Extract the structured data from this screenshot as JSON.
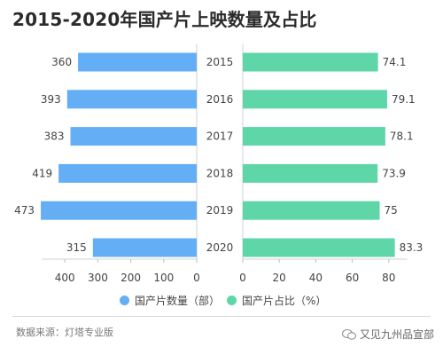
{
  "title": "2015-2020年国产片上映数量及占比",
  "chart_data": [
    {
      "type": "bar",
      "orientation": "horizontal",
      "direction": "leftward",
      "categories": [
        "2015",
        "2016",
        "2017",
        "2018",
        "2019",
        "2020"
      ],
      "series": [
        {
          "name": "国产片数量（部）",
          "values": [
            360,
            393,
            383,
            419,
            473,
            315
          ]
        }
      ],
      "xlim": [
        0,
        470
      ],
      "xticks": [
        "400",
        "300",
        "200",
        "100",
        "0"
      ],
      "color": "#63aef5"
    },
    {
      "type": "bar",
      "orientation": "horizontal",
      "direction": "rightward",
      "categories": [
        "2015",
        "2016",
        "2017",
        "2018",
        "2019",
        "2020"
      ],
      "series": [
        {
          "name": "国产片占比（%）",
          "values": [
            74.1,
            79.1,
            78.1,
            73.9,
            75,
            83.3
          ]
        }
      ],
      "labels": [
        "74.1",
        "79.1",
        "78.1",
        "73.9",
        "75",
        "83.3"
      ],
      "xlim": [
        0,
        90
      ],
      "xticks": [
        "0",
        "20",
        "40",
        "60",
        "80"
      ],
      "color": "#5ed6a8"
    }
  ],
  "source": "数据来源：灯塔专业版",
  "watermark": "又见九州品宣部",
  "watermark_icon": "wechat-icon"
}
